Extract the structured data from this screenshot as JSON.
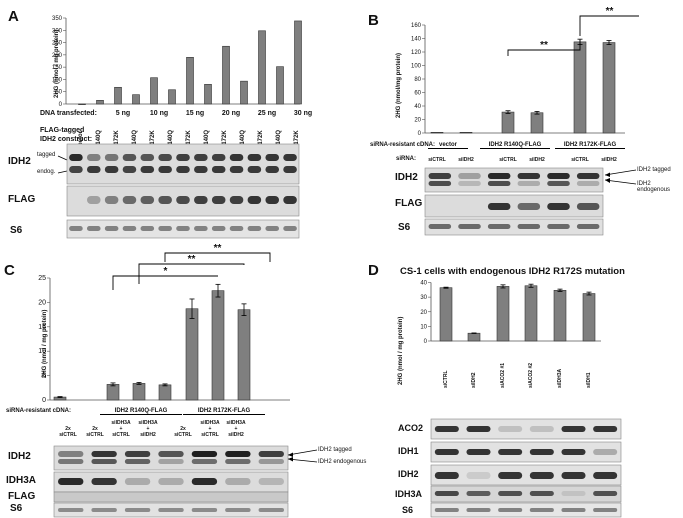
{
  "panels": [
    {
      "id": "A",
      "label": "A",
      "chart_data": {
        "type": "bar",
        "ylabel": "2HG (nmol / mg protein)",
        "ylim": [
          0,
          350
        ],
        "yticks": [
          "0",
          "50",
          "100",
          "150",
          "200",
          "250",
          "300",
          "350"
        ],
        "categories": [
          "vector",
          "R140Q",
          "R172K",
          "R140Q",
          "R172K",
          "R140Q",
          "R172K",
          "R140Q",
          "R172K",
          "R140Q",
          "R172K",
          "R140Q",
          "R172K"
        ],
        "values": [
          0,
          15,
          68,
          38,
          107,
          58,
          190,
          80,
          235,
          93,
          298,
          152,
          338
        ]
      },
      "dna_label": "DNA transfected:",
      "dna_doses": [
        "5 ng",
        "10 ng",
        "15 ng",
        "20 ng",
        "25 ng",
        "30 ng"
      ],
      "construct_label": [
        "FLAG-tagged",
        "IDH2 construct:"
      ],
      "blots": [
        "IDH2",
        "FLAG",
        "S6"
      ],
      "annotations": [
        "tagged",
        "endog."
      ]
    },
    {
      "id": "B",
      "label": "B",
      "chart_data": {
        "type": "bar",
        "ylabel": "2HG (nmol/mg protein)",
        "ylim": [
          0,
          160
        ],
        "yticks": [
          "0",
          "20",
          "40",
          "60",
          "80",
          "100",
          "120",
          "140",
          "160"
        ],
        "categories": [
          "siCTRL",
          "siIDH2",
          "siCTRL",
          "siIDH2",
          "siCTRL",
          "siIDH2"
        ],
        "values": [
          1,
          1,
          31,
          30,
          135,
          134
        ],
        "errors": [
          0,
          0,
          2,
          2,
          4,
          3
        ],
        "significance": [
          "**",
          "**"
        ]
      },
      "cdna_label": "siRNA-resistant cDNA:",
      "groups": [
        "vector",
        "IDH2 R140Q-FLAG",
        "IDH2 R172K-FLAG"
      ],
      "sirna_label": "siRNA:",
      "blots": [
        "IDH2",
        "FLAG",
        "S6"
      ],
      "annotations": [
        "IDH2 tagged",
        "IDH2 endogenous"
      ]
    },
    {
      "id": "C",
      "label": "C",
      "chart_data": {
        "type": "bar",
        "ylabel": "2HG (nmol / mg protein)",
        "ylim": [
          0,
          25
        ],
        "yticks": [
          "0",
          "5",
          "10",
          "15",
          "20",
          "25"
        ],
        "categories": [
          "2x siCTRL",
          "2x siCTRL",
          "siIDH3A + siCTRL",
          "siIDH3A + siIDH2",
          "2x siCTRL",
          "siIDH3A + siCTRL",
          "siIDH3A + siIDH2"
        ],
        "values": [
          0.6,
          3.2,
          3.4,
          3.1,
          18.7,
          22.4,
          18.5
        ],
        "errors": [
          0.1,
          0.3,
          0.2,
          0.2,
          2.0,
          1.3,
          1.2
        ],
        "significance": [
          "*",
          "**",
          "**"
        ]
      },
      "cdna_label": "siRNA-resistant cDNA:",
      "groups": [
        "IDH2 R140Q-FLAG",
        "IDH2 R172K-FLAG"
      ],
      "lanes": [
        [
          "2x",
          "siCTRL"
        ],
        [
          "2x",
          "siCTRL"
        ],
        [
          "siIDH3A",
          "+",
          "siCTRL"
        ],
        [
          "siIDH3A",
          "+",
          "siIDH2"
        ],
        [
          "2x",
          "siCTRL"
        ],
        [
          "siIDH3A",
          "+",
          "siCTRL"
        ],
        [
          "siIDH3A",
          "+",
          "siIDH2"
        ]
      ],
      "blots": [
        "IDH2",
        "IDH3A",
        "FLAG",
        "S6"
      ],
      "annotations": [
        "IDH2 tagged",
        "IDH2 endogenous"
      ]
    },
    {
      "id": "D",
      "label": "D",
      "title": "CS-1 cells with endogenous IDH2 R172S mutation",
      "chart_data": {
        "type": "bar",
        "ylabel": "2HG (nmol / mg protein)",
        "ylim": [
          0,
          45
        ],
        "yticks": [
          "0",
          "10",
          "20",
          "30",
          "40"
        ],
        "categories": [
          "siCTRL",
          "siIDH2",
          "siACO2 #1",
          "siACO2 #2",
          "siIDH3A",
          "siIDH1"
        ],
        "values": [
          41,
          6,
          42,
          42.5,
          39,
          36.5
        ],
        "errors": [
          0.4,
          0.2,
          1.2,
          1.2,
          0.9,
          1.1
        ]
      },
      "blots": [
        "ACO2",
        "IDH1",
        "IDH2",
        "IDH3A",
        "S6"
      ]
    }
  ]
}
